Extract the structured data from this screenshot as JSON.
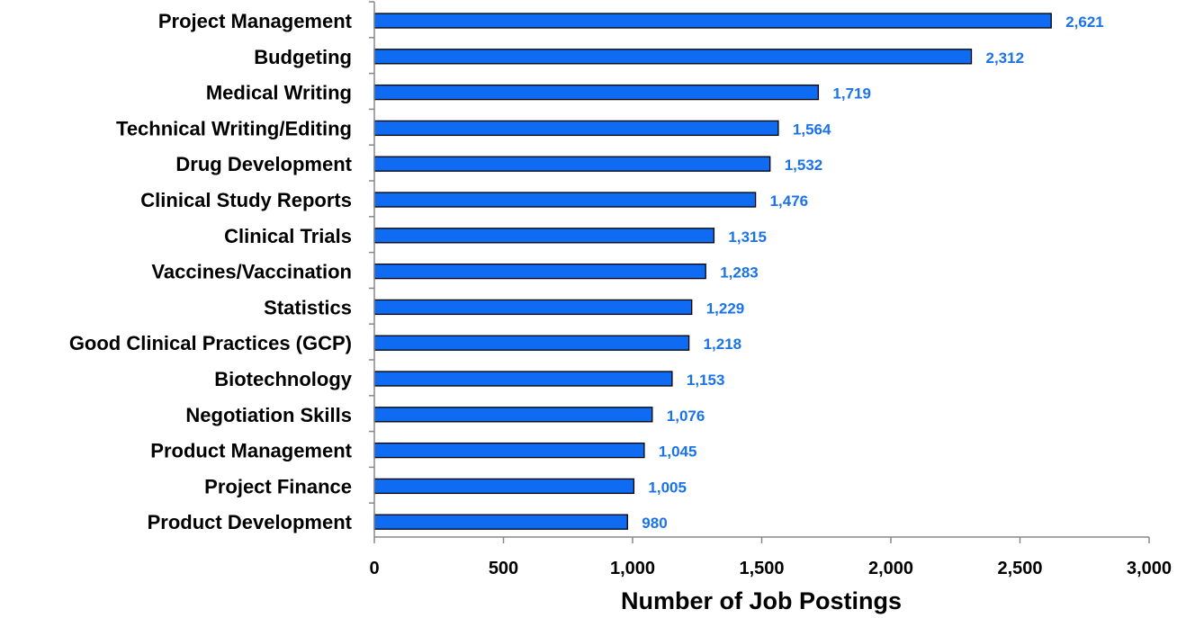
{
  "chart_data": {
    "type": "bar",
    "orientation": "horizontal",
    "categories": [
      "Project Management",
      "Budgeting",
      "Medical Writing",
      "Technical Writing/Editing",
      "Drug Development",
      "Clinical Study Reports",
      "Clinical Trials",
      "Vaccines/Vaccination",
      "Statistics",
      "Good Clinical Practices (GCP)",
      "Biotechnology",
      "Negotiation Skills",
      "Product Management",
      "Project Finance",
      "Product Development"
    ],
    "values": [
      2621,
      2312,
      1719,
      1564,
      1532,
      1476,
      1315,
      1283,
      1229,
      1218,
      1153,
      1076,
      1045,
      1005,
      980
    ],
    "value_labels": [
      "2,621",
      "2,312",
      "1,719",
      "1,564",
      "1,532",
      "1,476",
      "1,315",
      "1,283",
      "1,229",
      "1,218",
      "1,153",
      "1,076",
      "1,045",
      "1,005",
      "980"
    ],
    "xlabel": "Number of Job Postings",
    "ylabel": "",
    "title": "",
    "xlim": [
      0,
      3000
    ],
    "xticks": [
      0,
      500,
      1000,
      1500,
      2000,
      2500,
      3000
    ],
    "xtick_labels": [
      "0",
      "500",
      "1,000",
      "1,500",
      "2,000",
      "2,500",
      "3,000"
    ],
    "grid": false,
    "legend": "none",
    "colors": {
      "bar_fill": "#0f6cf2",
      "bar_stroke": "#000000",
      "value_label": "#1a73e8",
      "axis": "#888888"
    }
  }
}
